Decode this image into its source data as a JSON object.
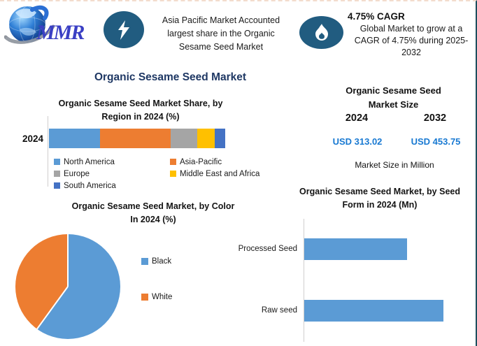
{
  "colors": {
    "badge_blue": "#215c80",
    "title_navy": "#1f3864",
    "usd_blue": "#1879d2",
    "right_border": "#1d4e5e",
    "axis_gray": "#d0cece"
  },
  "header": {
    "logo": {
      "text": "MMR"
    },
    "highlight1": {
      "icon": "lightning-icon",
      "text": "Asia Pacific Market Accounted largest share in the Organic Sesame Seed Market",
      "lines": [
        "Asia Pacific Market Accounted",
        "largest share in the Organic",
        "Sesame Seed Market"
      ]
    },
    "highlight2": {
      "icon": "flame-icon",
      "title": "4.75% CAGR",
      "text": "Global Market to grow at a CAGR of 4.75% during 2025-2032",
      "lines": [
        "Global Market to grow at a",
        "CAGR of 4.75% during 2025-",
        "2032"
      ]
    }
  },
  "main_title": "Organic Sesame Seed Market",
  "market_size": {
    "title": "Organic Sesame Seed Market Size",
    "title_lines": [
      "Organic Sesame Seed",
      "Market Size"
    ],
    "years": [
      "2024",
      "2032"
    ],
    "values": [
      "USD 313.02",
      "USD 453.75"
    ],
    "note": "Market Size in Million"
  },
  "chart_data": [
    {
      "type": "bar",
      "variant": "horizontal-stacked",
      "title": "Organic Sesame Seed Market Share, by Region in 2024 (%)",
      "title_lines": [
        "Organic Sesame Seed Market Share, by",
        "Region in 2024 (%)"
      ],
      "category": "2024",
      "unit": "%",
      "series": [
        {
          "name": "North America",
          "value": 29,
          "color": "#5b9bd5"
        },
        {
          "name": "Asia-Pacific",
          "value": 40,
          "color": "#ed7d31"
        },
        {
          "name": "Europe",
          "value": 15,
          "color": "#a5a5a5"
        },
        {
          "name": "Middle East and Africa",
          "value": 10,
          "color": "#ffc000"
        },
        {
          "name": "South America",
          "value": 6,
          "color": "#4472c4"
        }
      ],
      "legend_position": "bottom"
    },
    {
      "type": "pie",
      "title": "Organic Sesame Seed Market, by Color In 2024 (%)",
      "title_lines": [
        "Organic Sesame Seed Market, by Color",
        "In 2024 (%)"
      ],
      "unit": "%",
      "start_angle_deg": 0,
      "slices": [
        {
          "name": "Black",
          "value": 60,
          "color": "#5b9bd5"
        },
        {
          "name": "White",
          "value": 40,
          "color": "#ed7d31"
        }
      ],
      "legend_position": "right"
    },
    {
      "type": "bar",
      "variant": "horizontal",
      "title": "Organic Sesame Seed Market, by Seed Form in 2024 (Mn)",
      "title_lines": [
        "Organic Sesame Seed Market, by Seed",
        "Form in 2024 (Mn)"
      ],
      "unit": "Mn",
      "categories": [
        "Processed Seed",
        "Raw seed"
      ],
      "values": [
        133,
        180
      ],
      "color": "#5b9bd5",
      "gridlines": false
    }
  ]
}
